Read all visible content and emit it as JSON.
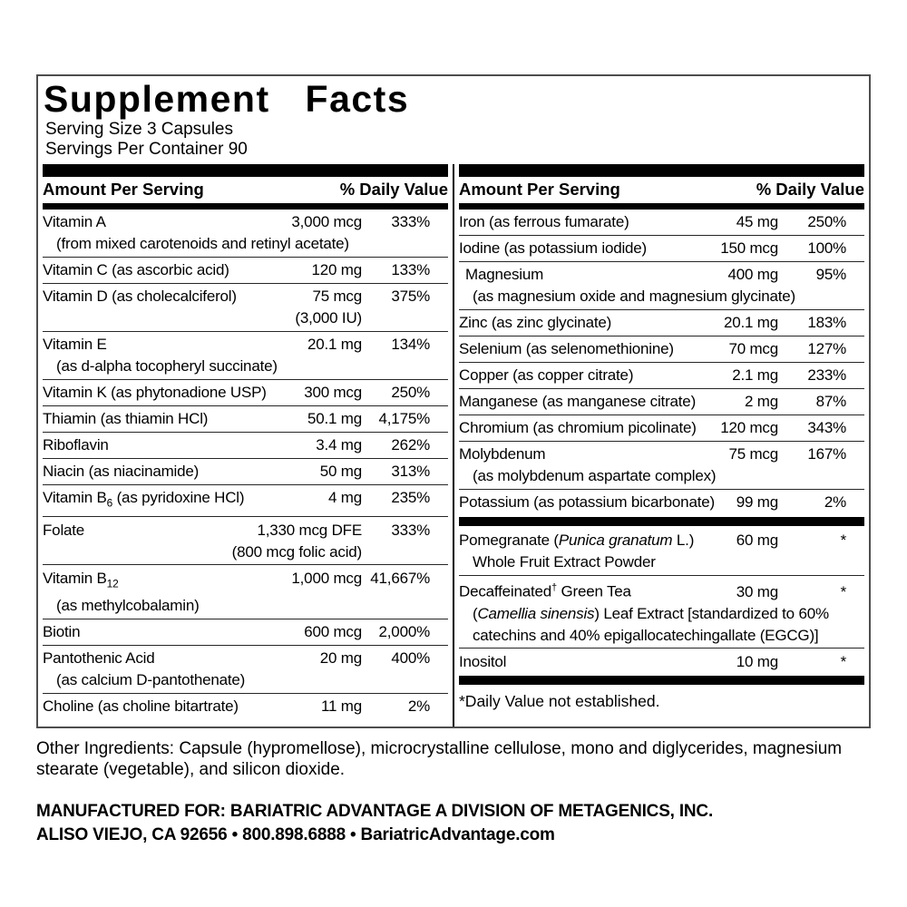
{
  "title": "Supplement  Facts",
  "serving_size": "Serving Size 3 Capsules",
  "servings_per_container": "Servings Per Container 90",
  "header": {
    "amount_label": "Amount Per Serving",
    "daily_value_label": "% Daily Value"
  },
  "left_column": {
    "rows": [
      {
        "name": "Vitamin A",
        "amount": "3,000 mcg",
        "pct": "333%",
        "sub": [
          "(from mixed carotenoids and retinyl acetate)"
        ]
      },
      {
        "name": "Vitamin C (as ascorbic acid)",
        "amount": "120 mg",
        "pct": "133%"
      },
      {
        "name": "Vitamin D (as cholecalciferol)",
        "amount": "75 mcg",
        "pct": "375%",
        "amount_sub": "(3,000 IU)"
      },
      {
        "name": "Vitamin E",
        "amount": "20.1 mg",
        "pct": "134%",
        "sub": [
          "(as d-alpha tocopheryl succinate)"
        ]
      },
      {
        "name": "Vitamin K (as phytonadione USP)",
        "amount": "300 mcg",
        "pct": "250%"
      },
      {
        "name": "Thiamin (as thiamin HCl)",
        "amount": "50.1 mg",
        "pct": "4,175%"
      },
      {
        "name": "Riboflavin",
        "amount": "3.4 mg",
        "pct": "262%"
      },
      {
        "name": "Niacin (as niacinamide)",
        "amount": "50 mg",
        "pct": "313%"
      },
      {
        "name": "Vitamin B~6~ (as pyridoxine HCl)",
        "amount": "4 mg",
        "pct": "235%"
      },
      {
        "name": "Folate",
        "amount": "1,330 mcg DFE",
        "pct": "333%",
        "amount_sub": "(800 mcg folic acid)"
      },
      {
        "name": "Vitamin B~12~",
        "amount": "1,000 mcg",
        "pct": "41,667%",
        "sub": [
          "(as methylcobalamin)"
        ]
      },
      {
        "name": "Biotin",
        "amount": "600 mcg",
        "pct": "2,000%"
      },
      {
        "name": "Pantothenic Acid",
        "amount": "20 mg",
        "pct": "400%",
        "sub": [
          "(as calcium D-pantothenate)"
        ]
      },
      {
        "name": "Choline (as choline bitartrate)",
        "amount": "11 mg",
        "pct": "2%"
      }
    ]
  },
  "right_column": {
    "rows": [
      {
        "name": "Iron (as ferrous fumarate)",
        "amount": "45 mg",
        "pct": "250%"
      },
      {
        "name": "Iodine (as potassium iodide)",
        "amount": "150 mcg",
        "pct": "100%"
      },
      {
        "name": "Magnesium",
        "amount": "400 mg",
        "pct": "95%",
        "indent": true,
        "sub": [
          "(as magnesium oxide and magnesium glycinate)"
        ]
      },
      {
        "name": "Zinc (as zinc glycinate)",
        "amount": "20.1 mg",
        "pct": "183%"
      },
      {
        "name": "Selenium (as selenomethionine)",
        "amount": "70 mcg",
        "pct": "127%"
      },
      {
        "name": "Copper (as copper citrate)",
        "amount": "2.1 mg",
        "pct": "233%"
      },
      {
        "name": "Manganese (as manganese citrate)",
        "amount": "2 mg",
        "pct": "87%"
      },
      {
        "name": "Chromium (as chromium picolinate)",
        "amount": "120 mcg",
        "pct": "343%"
      },
      {
        "name": "Molybdenum",
        "amount": "75 mcg",
        "pct": "167%",
        "sub": [
          "(as molybdenum aspartate complex)"
        ]
      },
      {
        "name": "Potassium (as potassium bicarbonate)",
        "amount": "99 mg",
        "pct": "2%"
      },
      {
        "type": "bar"
      },
      {
        "name": "Pomegranate (_Punica granatum_ L.)",
        "amount": "60 mg",
        "pct": "*",
        "sub": [
          "Whole Fruit Extract Powder"
        ]
      },
      {
        "name": "Decaffeinated^†^ Green Tea",
        "amount": "30 mg",
        "pct": "*",
        "sub": [
          "(_Camellia sinensis_) Leaf Extract [standardized to 60%",
          "catechins and 40% epigallocatechingallate (EGCG)]"
        ]
      },
      {
        "name": "Inositol",
        "amount": "10 mg",
        "pct": "*"
      },
      {
        "type": "bar"
      },
      {
        "type": "note",
        "text": "*Daily Value not established."
      }
    ]
  },
  "other_ingredients": "Other Ingredients: Capsule (hypromellose), microcrystalline cellulose, mono and diglycerides, magnesium stearate (vegetable), and silicon dioxide.",
  "footer": {
    "line1": "MANUFACTURED FOR: BARIATRIC ADVANTAGE A DIVISION OF METAGENICS, INC.",
    "line2": "ALISO VIEJO, CA 92656 • 800.898.6888 • BariatricAdvantage.com"
  },
  "colors": {
    "ink": "#000000",
    "panel_border": "#4d4d4d",
    "background": "#ffffff"
  }
}
